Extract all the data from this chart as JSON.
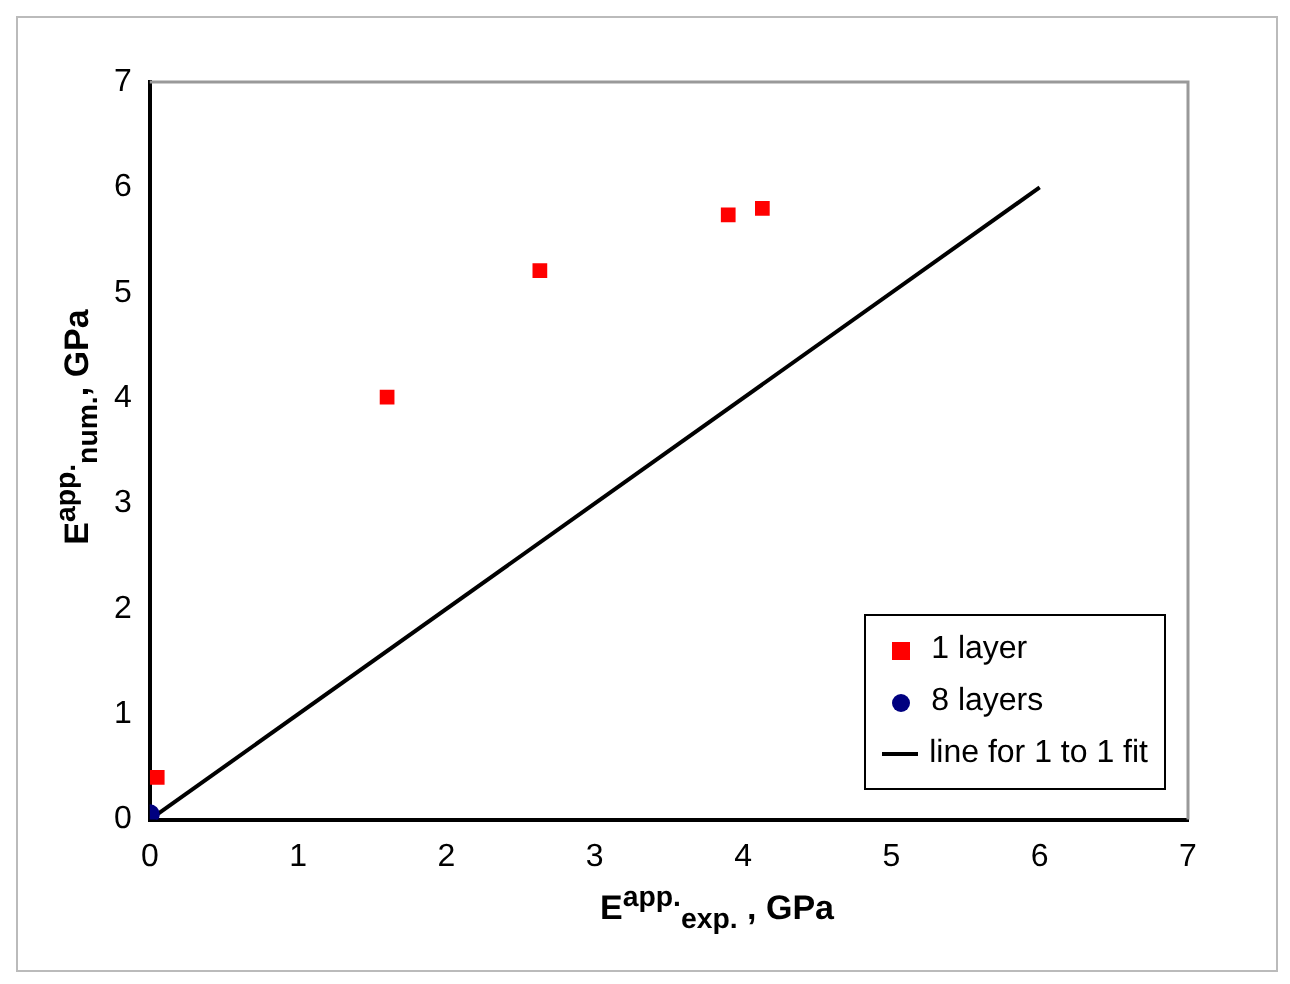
{
  "chart_data": {
    "type": "scatter",
    "xlabel": "E$^{app.}$$_{exp.}$ , GPa",
    "ylabel": "E$^{app.}$$_{num.}$, GPa",
    "xlim": [
      0,
      7
    ],
    "ylim": [
      0,
      7
    ],
    "xticks": [
      0,
      1,
      2,
      3,
      4,
      5,
      6,
      7
    ],
    "yticks": [
      0,
      1,
      2,
      3,
      4,
      5,
      6,
      7
    ],
    "grid": false,
    "legend": "bottom right",
    "series": [
      {
        "name": "1 layer",
        "color": "#ff0000",
        "marker": "square",
        "x": [
          0.05,
          1.6,
          2.63,
          3.9,
          4.13
        ],
        "values": [
          0.4,
          4.01,
          5.21,
          5.74,
          5.8
        ]
      },
      {
        "name": "8 layers",
        "color": "#000080",
        "marker": "circle",
        "x": [
          0.0
        ],
        "values": [
          0.05
        ]
      },
      {
        "name": "line for 1 to 1 fit",
        "type": "line",
        "color": "#000000",
        "marker": "none",
        "x": [
          0,
          6
        ],
        "values": [
          0,
          6
        ]
      }
    ]
  }
}
